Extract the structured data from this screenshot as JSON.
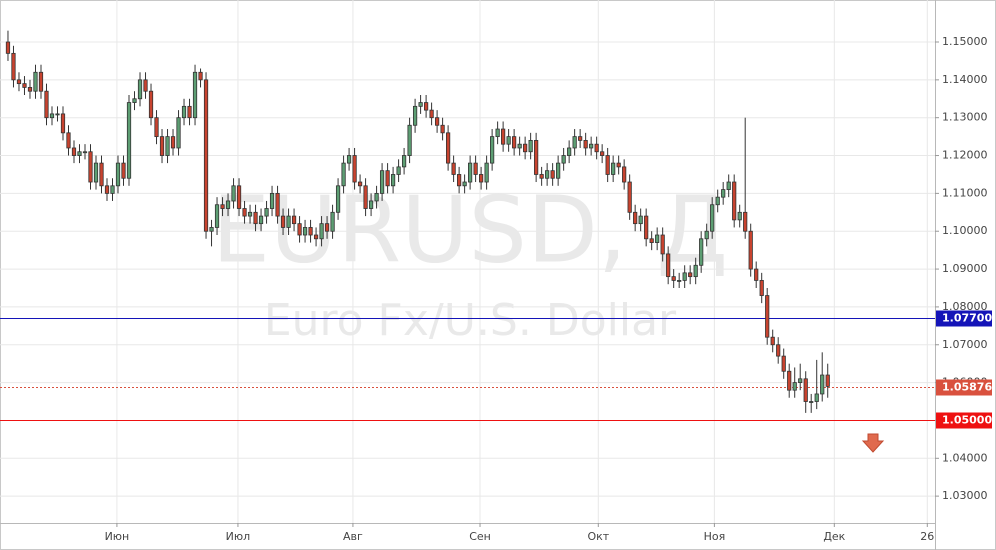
{
  "chart_data": {
    "type": "candlestick",
    "watermark": "EURUSD, Д",
    "watermark_subtitle": "Euro Fx/U.S. Dollar",
    "up_color": "#5d9e73",
    "down_color": "#c8432f",
    "grid": true,
    "xlim": [
      -1.45,
      168.5
    ],
    "xticks": [
      {
        "value": 19.8,
        "label": "Июн"
      },
      {
        "value": 41.8,
        "label": "Июл"
      },
      {
        "value": 62.7,
        "label": "Авг"
      },
      {
        "value": 85.8,
        "label": "Сен"
      },
      {
        "value": 107.3,
        "label": "Окт"
      },
      {
        "value": 128.4,
        "label": "Ноя"
      },
      {
        "value": 150.2,
        "label": "Дек"
      },
      {
        "value": 167.1,
        "label": "26"
      }
    ],
    "ylim": [
      1.0229,
      1.1611
    ],
    "yticks": [
      {
        "value": 1.03,
        "label": "1.03000"
      },
      {
        "value": 1.04,
        "label": "1.04000"
      },
      {
        "value": 1.05,
        "label": "1.05000"
      },
      {
        "value": 1.06,
        "label": "1.06000"
      },
      {
        "value": 1.07,
        "label": "1.07000"
      },
      {
        "value": 1.08,
        "label": "1.08000"
      },
      {
        "value": 1.09,
        "label": "1.09000"
      },
      {
        "value": 1.1,
        "label": "1.10000"
      },
      {
        "value": 1.11,
        "label": "1.11000"
      },
      {
        "value": 1.12,
        "label": "1.12000"
      },
      {
        "value": 1.13,
        "label": "1.13000"
      },
      {
        "value": 1.14,
        "label": "1.14000"
      },
      {
        "value": 1.15,
        "label": "1.15000"
      }
    ],
    "levels": [
      {
        "price": {
          "value": 1.077,
          "label": "1.07700"
        },
        "color": "#1414b8",
        "style": "solid"
      },
      {
        "price": {
          "value": 1.05876,
          "label": "1.05876"
        },
        "color": "#d9513e",
        "style": "dotted"
      },
      {
        "price": {
          "value": 1.05,
          "label": "1.05000"
        },
        "color": "#ee1111",
        "style": "solid"
      }
    ],
    "open": [
      1.15,
      1.147,
      1.14,
      1.139,
      1.138,
      1.137,
      1.142,
      1.137,
      1.13,
      1.131,
      1.131,
      1.126,
      1.122,
      1.12,
      1.121,
      1.121,
      1.113,
      1.118,
      1.112,
      1.11,
      1.112,
      1.118,
      1.114,
      1.134,
      1.135,
      1.14,
      1.137,
      1.13,
      1.125,
      1.12,
      1.125,
      1.122,
      1.13,
      1.133,
      1.13,
      1.142,
      1.14,
      1.1,
      1.101,
      1.107,
      1.106,
      1.108,
      1.112,
      1.106,
      1.104,
      1.105,
      1.102,
      1.104,
      1.106,
      1.11,
      1.104,
      1.101,
      1.104,
      1.102,
      1.099,
      1.101,
      1.099,
      1.098,
      1.102,
      1.1,
      1.105,
      1.112,
      1.118,
      1.12,
      1.113,
      1.112,
      1.106,
      1.108,
      1.11,
      1.116,
      1.112,
      1.115,
      1.117,
      1.12,
      1.128,
      1.133,
      1.134,
      1.132,
      1.13,
      1.128,
      1.126,
      1.118,
      1.115,
      1.112,
      1.113,
      1.118,
      1.115,
      1.113,
      1.118,
      1.125,
      1.127,
      1.123,
      1.125,
      1.122,
      1.123,
      1.121,
      1.124,
      1.115,
      1.114,
      1.116,
      1.114,
      1.118,
      1.12,
      1.122,
      1.125,
      1.124,
      1.122,
      1.123,
      1.121,
      1.12,
      1.115,
      1.118,
      1.117,
      1.113,
      1.105,
      1.102,
      1.104,
      1.098,
      1.097,
      1.099,
      1.094,
      1.088,
      1.087,
      1.087,
      1.089,
      1.088,
      1.091,
      1.098,
      1.1,
      1.107,
      1.109,
      1.111,
      1.113,
      1.103,
      1.105,
      1.1,
      1.09,
      1.087,
      1.083,
      1.072,
      1.07,
      1.067,
      1.063,
      1.058,
      1.06,
      1.061,
      1.055,
      1.055,
      1.057,
      1.062
    ],
    "high": [
      1.153,
      1.149,
      1.142,
      1.141,
      1.14,
      1.144,
      1.144,
      1.139,
      1.133,
      1.133,
      1.133,
      1.128,
      1.124,
      1.123,
      1.123,
      1.123,
      1.12,
      1.12,
      1.114,
      1.114,
      1.12,
      1.12,
      1.136,
      1.137,
      1.142,
      1.142,
      1.139,
      1.132,
      1.127,
      1.127,
      1.127,
      1.132,
      1.135,
      1.135,
      1.144,
      1.143,
      1.142,
      1.103,
      1.109,
      1.109,
      1.11,
      1.114,
      1.114,
      1.108,
      1.107,
      1.107,
      1.106,
      1.108,
      1.112,
      1.112,
      1.106,
      1.106,
      1.106,
      1.104,
      1.103,
      1.103,
      1.101,
      1.104,
      1.104,
      1.107,
      1.114,
      1.12,
      1.122,
      1.122,
      1.115,
      1.114,
      1.11,
      1.112,
      1.118,
      1.118,
      1.117,
      1.119,
      1.122,
      1.13,
      1.135,
      1.136,
      1.136,
      1.134,
      1.132,
      1.13,
      1.128,
      1.12,
      1.117,
      1.115,
      1.12,
      1.12,
      1.117,
      1.12,
      1.127,
      1.129,
      1.129,
      1.127,
      1.127,
      1.125,
      1.125,
      1.126,
      1.126,
      1.117,
      1.118,
      1.118,
      1.12,
      1.122,
      1.124,
      1.127,
      1.127,
      1.126,
      1.125,
      1.125,
      1.123,
      1.122,
      1.12,
      1.12,
      1.119,
      1.115,
      1.107,
      1.106,
      1.106,
      1.1,
      1.101,
      1.101,
      1.096,
      1.09,
      1.089,
      1.091,
      1.091,
      1.093,
      1.1,
      1.102,
      1.109,
      1.111,
      1.113,
      1.115,
      1.115,
      1.107,
      1.13,
      1.102,
      1.092,
      1.089,
      1.085,
      1.074,
      1.072,
      1.069,
      1.065,
      1.064,
      1.065,
      1.063,
      1.057,
      1.066,
      1.068,
      1.065
    ],
    "low": [
      1.145,
      1.138,
      1.137,
      1.136,
      1.135,
      1.135,
      1.135,
      1.128,
      1.128,
      1.129,
      1.124,
      1.12,
      1.118,
      1.118,
      1.119,
      1.111,
      1.111,
      1.11,
      1.108,
      1.108,
      1.11,
      1.112,
      1.112,
      1.132,
      1.133,
      1.135,
      1.128,
      1.123,
      1.118,
      1.118,
      1.12,
      1.12,
      1.128,
      1.128,
      1.128,
      1.138,
      1.098,
      1.096,
      1.099,
      1.104,
      1.104,
      1.106,
      1.104,
      1.102,
      1.102,
      1.1,
      1.1,
      1.102,
      1.104,
      1.102,
      1.099,
      1.099,
      1.1,
      1.097,
      1.097,
      1.097,
      1.096,
      1.096,
      1.098,
      1.098,
      1.103,
      1.11,
      1.116,
      1.111,
      1.11,
      1.104,
      1.104,
      1.106,
      1.108,
      1.11,
      1.11,
      1.113,
      1.115,
      1.118,
      1.126,
      1.131,
      1.13,
      1.128,
      1.126,
      1.124,
      1.116,
      1.113,
      1.11,
      1.11,
      1.111,
      1.113,
      1.111,
      1.111,
      1.116,
      1.123,
      1.121,
      1.121,
      1.12,
      1.12,
      1.119,
      1.119,
      1.113,
      1.112,
      1.112,
      1.112,
      1.112,
      1.116,
      1.118,
      1.12,
      1.122,
      1.12,
      1.12,
      1.119,
      1.118,
      1.113,
      1.113,
      1.115,
      1.111,
      1.103,
      1.1,
      1.1,
      1.096,
      1.095,
      1.095,
      1.092,
      1.086,
      1.085,
      1.085,
      1.085,
      1.086,
      1.086,
      1.089,
      1.096,
      1.098,
      1.105,
      1.107,
      1.109,
      1.101,
      1.101,
      1.098,
      1.088,
      1.085,
      1.081,
      1.07,
      1.068,
      1.065,
      1.061,
      1.056,
      1.056,
      1.058,
      1.052,
      1.052,
      1.053,
      1.055,
      1.056
    ],
    "close": [
      1.147,
      1.14,
      1.139,
      1.138,
      1.137,
      1.142,
      1.137,
      1.13,
      1.131,
      1.131,
      1.126,
      1.122,
      1.12,
      1.121,
      1.121,
      1.113,
      1.118,
      1.112,
      1.11,
      1.112,
      1.118,
      1.114,
      1.134,
      1.135,
      1.14,
      1.137,
      1.13,
      1.125,
      1.12,
      1.125,
      1.122,
      1.13,
      1.133,
      1.13,
      1.142,
      1.14,
      1.1,
      1.101,
      1.107,
      1.106,
      1.108,
      1.112,
      1.106,
      1.104,
      1.105,
      1.102,
      1.104,
      1.106,
      1.11,
      1.104,
      1.101,
      1.104,
      1.102,
      1.099,
      1.101,
      1.099,
      1.098,
      1.102,
      1.1,
      1.105,
      1.112,
      1.118,
      1.12,
      1.113,
      1.112,
      1.106,
      1.108,
      1.11,
      1.116,
      1.112,
      1.115,
      1.117,
      1.12,
      1.128,
      1.133,
      1.134,
      1.132,
      1.13,
      1.128,
      1.126,
      1.118,
      1.115,
      1.112,
      1.113,
      1.118,
      1.115,
      1.113,
      1.118,
      1.125,
      1.127,
      1.123,
      1.125,
      1.122,
      1.123,
      1.121,
      1.124,
      1.115,
      1.114,
      1.116,
      1.114,
      1.118,
      1.12,
      1.122,
      1.125,
      1.124,
      1.122,
      1.123,
      1.121,
      1.12,
      1.115,
      1.118,
      1.117,
      1.113,
      1.105,
      1.102,
      1.104,
      1.098,
      1.097,
      1.099,
      1.094,
      1.088,
      1.087,
      1.087,
      1.089,
      1.088,
      1.091,
      1.098,
      1.1,
      1.107,
      1.109,
      1.111,
      1.113,
      1.103,
      1.105,
      1.1,
      1.09,
      1.087,
      1.083,
      1.072,
      1.07,
      1.067,
      1.063,
      1.058,
      1.06,
      1.061,
      1.055,
      1.055,
      1.057,
      1.062,
      1.059
    ]
  }
}
